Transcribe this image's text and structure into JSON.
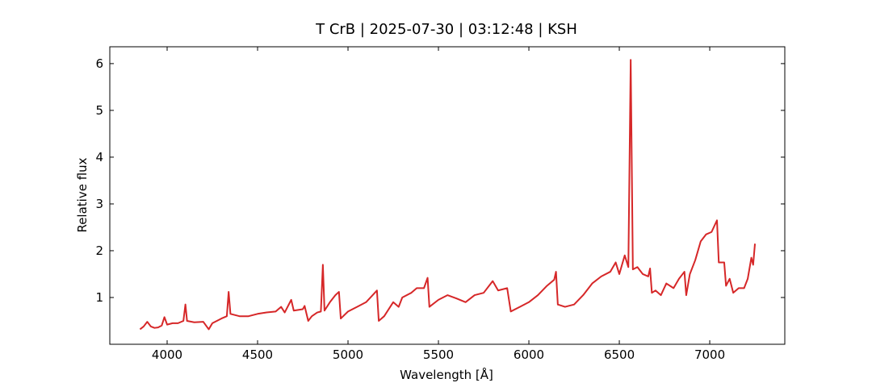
{
  "chart_data": {
    "type": "line",
    "title": "T CrB | 2025-07-30 | 03:12:48 | KSH",
    "x_label": "Wavelength [Å]",
    "y_label": "Relative flux",
    "color": "#d62728",
    "xlim": [
      3683,
      7415
    ],
    "ylim": [
      0,
      6.36
    ],
    "xticks": [
      4000,
      4500,
      5000,
      5500,
      6000,
      6500,
      7000
    ],
    "yticks": [
      1,
      2,
      3,
      4,
      5,
      6
    ],
    "x": [
      3850,
      3870,
      3890,
      3910,
      3930,
      3950,
      3970,
      3985,
      4000,
      4030,
      4060,
      4090,
      4101,
      4110,
      4150,
      4200,
      4230,
      4250,
      4300,
      4330,
      4340,
      4350,
      4400,
      4450,
      4500,
      4550,
      4600,
      4630,
      4650,
      4686,
      4700,
      4750,
      4760,
      4780,
      4800,
      4830,
      4850,
      4861,
      4870,
      4900,
      4930,
      4950,
      4960,
      5000,
      5050,
      5100,
      5160,
      5170,
      5200,
      5250,
      5280,
      5300,
      5350,
      5380,
      5420,
      5440,
      5450,
      5500,
      5550,
      5600,
      5650,
      5700,
      5750,
      5800,
      5830,
      5880,
      5900,
      5950,
      6000,
      6050,
      6100,
      6140,
      6150,
      6160,
      6200,
      6250,
      6300,
      6350,
      6400,
      6450,
      6480,
      6500,
      6530,
      6550,
      6563,
      6575,
      6600,
      6630,
      6660,
      6670,
      6680,
      6700,
      6730,
      6760,
      6800,
      6830,
      6860,
      6870,
      6890,
      6920,
      6950,
      6980,
      7010,
      7040,
      7050,
      7080,
      7090,
      7110,
      7130,
      7160,
      7190,
      7210,
      7230,
      7240,
      7250
    ],
    "values": [
      0.32,
      0.38,
      0.48,
      0.38,
      0.35,
      0.36,
      0.4,
      0.58,
      0.42,
      0.45,
      0.45,
      0.5,
      0.85,
      0.5,
      0.47,
      0.48,
      0.32,
      0.45,
      0.55,
      0.6,
      1.12,
      0.65,
      0.6,
      0.6,
      0.65,
      0.68,
      0.7,
      0.8,
      0.68,
      0.95,
      0.72,
      0.75,
      0.82,
      0.5,
      0.6,
      0.68,
      0.7,
      1.7,
      0.72,
      0.9,
      1.05,
      1.12,
      0.55,
      0.7,
      0.8,
      0.9,
      1.15,
      0.5,
      0.6,
      0.9,
      0.8,
      1.0,
      1.1,
      1.2,
      1.2,
      1.42,
      0.8,
      0.95,
      1.05,
      0.98,
      0.9,
      1.05,
      1.1,
      1.35,
      1.15,
      1.2,
      0.7,
      0.8,
      0.9,
      1.05,
      1.25,
      1.38,
      1.55,
      0.85,
      0.8,
      0.85,
      1.05,
      1.3,
      1.45,
      1.55,
      1.75,
      1.5,
      1.9,
      1.65,
      6.08,
      1.6,
      1.65,
      1.5,
      1.45,
      1.62,
      1.1,
      1.15,
      1.05,
      1.3,
      1.2,
      1.4,
      1.55,
      1.05,
      1.5,
      1.8,
      2.2,
      2.35,
      2.4,
      2.65,
      1.75,
      1.75,
      1.25,
      1.4,
      1.1,
      1.2,
      1.2,
      1.4,
      1.85,
      1.7,
      2.15
    ]
  }
}
